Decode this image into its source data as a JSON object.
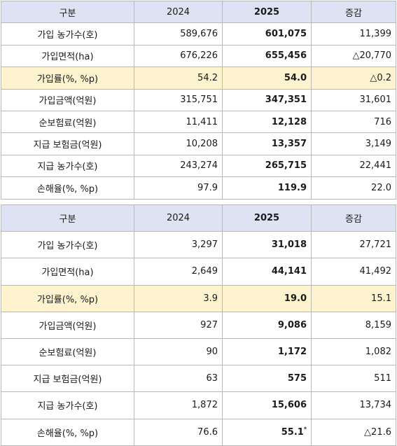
{
  "table1": {
    "headers": [
      "구분",
      "2024",
      "2025",
      "증감"
    ],
    "rows": [
      {
        "label": "가입 농가수(호)",
        "y2024": "589,676",
        "y2025": "601,075",
        "change": "11,399"
      },
      {
        "label": "가입면적(ha)",
        "y2024": "676,226",
        "y2025": "655,456",
        "change": "△20,770"
      },
      {
        "label": "가입률(%, %p)",
        "y2024": "54.2",
        "y2025": "54.0",
        "change": "△0.2"
      },
      {
        "label": "가입금액(억원)",
        "y2024": "315,751",
        "y2025": "347,351",
        "change": "31,601"
      },
      {
        "label": "순보험료(억원)",
        "y2024": "11,411",
        "y2025": "12,128",
        "change": "716"
      },
      {
        "label": "지급 보험금(억원)",
        "y2024": "10,208",
        "y2025": "13,357",
        "change": "3,149"
      },
      {
        "label": "지급 농가수(호)",
        "y2024": "243,274",
        "y2025": "265,715",
        "change": "22,441"
      },
      {
        "label": "손해율(%, %p)",
        "y2024": "97.9",
        "y2025": "119.9",
        "change": "22.0"
      }
    ]
  },
  "table2": {
    "headers": [
      "구분",
      "2024",
      "2025",
      "증감"
    ],
    "rows": [
      {
        "label": "가입 농가수(호)",
        "y2024": "3,297",
        "y2025": "31,018",
        "change": "27,721"
      },
      {
        "label": "가입면적(ha)",
        "y2024": "2,649",
        "y2025": "44,141",
        "change": "41,492"
      },
      {
        "label": "가입률(%, %p)",
        "y2024": "3.9",
        "y2025": "19.0",
        "change": "15.1"
      },
      {
        "label": "가입금액(억원)",
        "y2024": "927",
        "y2025": "9,086",
        "change": "8,159"
      },
      {
        "label": "순보험료(억원)",
        "y2024": "90",
        "y2025": "1,172",
        "change": "1,082"
      },
      {
        "label": "지급 보험금(억원)",
        "y2024": "63",
        "y2025": "575",
        "change": "511"
      },
      {
        "label": "지급 농가수(호)",
        "y2024": "1,872",
        "y2025": "15,606",
        "change": "13,734"
      },
      {
        "label": "손해율(%, %p)",
        "y2024": "76.6",
        "y2025": "55.1",
        "change": "△21.6",
        "footnote": "*"
      }
    ]
  },
  "colors": {
    "header_bg": "#dde3f2",
    "highlight_row_bg": "#fdf3cf",
    "border": "#b9b9b9"
  }
}
